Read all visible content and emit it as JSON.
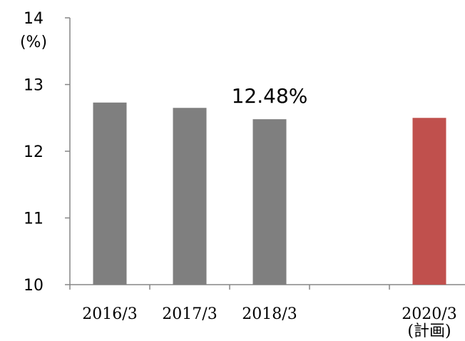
{
  "chart_data": {
    "type": "bar",
    "categories": [
      "2016/3",
      "2017/3",
      "2018/3",
      "",
      "2020/3"
    ],
    "category_sublabels": [
      "",
      "",
      "",
      "",
      "(計画)"
    ],
    "values": [
      12.73,
      12.65,
      12.48,
      null,
      12.5
    ],
    "bar_colors": [
      "#7f7f7f",
      "#7f7f7f",
      "#7f7f7f",
      null,
      "#c0504d"
    ],
    "ylim": [
      10,
      14
    ],
    "yticks": [
      "10",
      "11",
      "12",
      "13",
      "14"
    ],
    "y_unit": "(%)",
    "annotation": "12.48%",
    "annotation_category": "2018/3",
    "grid": false,
    "xlabel": "",
    "ylabel": "",
    "title": ""
  }
}
